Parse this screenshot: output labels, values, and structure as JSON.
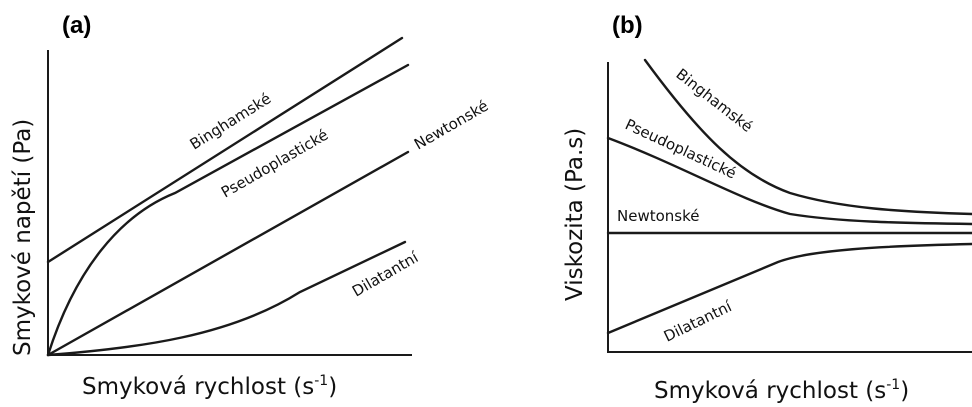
{
  "chart_data": [
    {
      "type": "line",
      "panel_label": "(a)",
      "xlabel": "Smyková rychlost (s",
      "xlabel_sup": "-1",
      "xlabel_end": ")",
      "ylabel": "Smykové napětí (Pa)",
      "series": [
        {
          "name": "Binghamské"
        },
        {
          "name": "Pseudoplastické"
        },
        {
          "name": "Newtonské"
        },
        {
          "name": "Dilatantní"
        }
      ]
    },
    {
      "type": "line",
      "panel_label": "(b)",
      "xlabel": "Smyková rychlost (s",
      "xlabel_sup": "-1",
      "xlabel_end": ")",
      "ylabel": "Viskozita (Pa.s)",
      "series": [
        {
          "name": "Binghamské"
        },
        {
          "name": "Pseudoplastické"
        },
        {
          "name": "Newtonské"
        },
        {
          "name": "Dilatantní"
        }
      ]
    }
  ]
}
